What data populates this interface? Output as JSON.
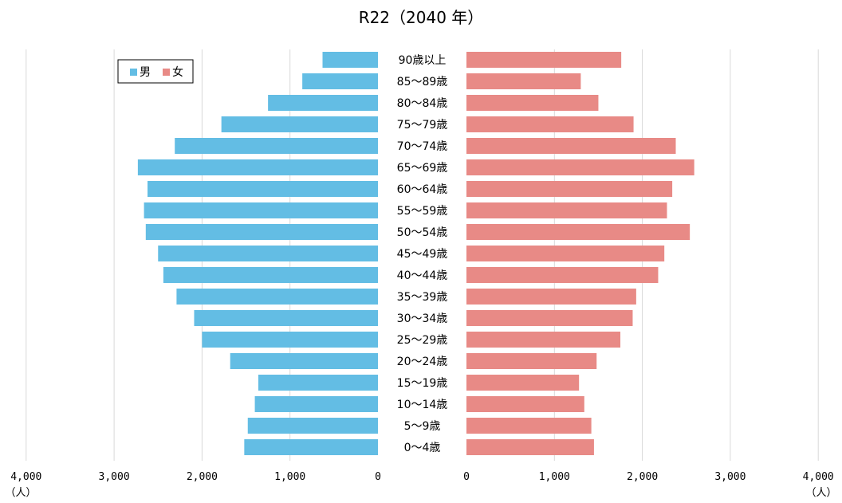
{
  "chart_data": {
    "type": "bar",
    "orientation": "horizontal",
    "title": "R22（2040 年）",
    "categories": [
      "90歳以上",
      "85～89歳",
      "80～84歳",
      "75～79歳",
      "70～74歳",
      "65～69歳",
      "60～64歳",
      "55～59歳",
      "50～54歳",
      "45～49歳",
      "40～44歳",
      "35～39歳",
      "30～34歳",
      "25～29歳",
      "20～24歳",
      "15～19歳",
      "10～14歳",
      "5～9歳",
      "0～4歳"
    ],
    "series": [
      {
        "name": "男",
        "color": "#63bde4",
        "values": [
          630,
          860,
          1250,
          1780,
          2310,
          2730,
          2620,
          2660,
          2640,
          2500,
          2440,
          2290,
          2090,
          2000,
          1680,
          1360,
          1400,
          1480,
          1520
        ]
      },
      {
        "name": "女",
        "color": "#e88a86",
        "values": [
          1760,
          1300,
          1500,
          1900,
          2380,
          2590,
          2340,
          2280,
          2540,
          2250,
          2180,
          1930,
          1890,
          1750,
          1480,
          1280,
          1340,
          1420,
          1450
        ]
      }
    ],
    "xlim": [
      0,
      4000
    ],
    "x_ticks_left": [
      "4,000",
      "3,000",
      "2,000",
      "1,000",
      "0"
    ],
    "x_ticks_right": [
      "0",
      "1,000",
      "2,000",
      "3,000",
      "4,000"
    ],
    "unit_label": "（人）",
    "grid": true,
    "legend_position": "top-left"
  }
}
